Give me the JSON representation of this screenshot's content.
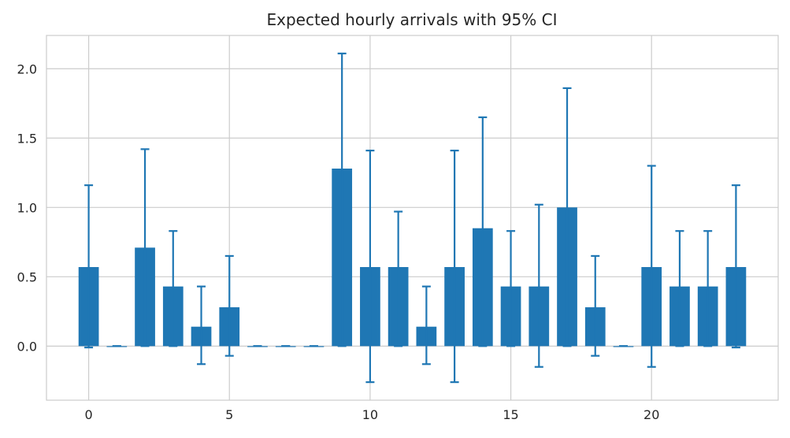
{
  "chart_data": {
    "type": "bar",
    "title": "Expected hourly arrivals with 95% CI",
    "xlabel": "",
    "ylabel": "",
    "categories": [
      0,
      1,
      2,
      3,
      4,
      5,
      6,
      7,
      8,
      9,
      10,
      11,
      12,
      13,
      14,
      15,
      16,
      17,
      18,
      19,
      20,
      21,
      22,
      23
    ],
    "values": [
      0.57,
      0.0,
      0.71,
      0.43,
      0.14,
      0.28,
      0.0,
      0.0,
      0.0,
      1.28,
      0.57,
      0.57,
      0.14,
      0.57,
      0.85,
      0.43,
      0.43,
      1.0,
      0.28,
      0.0,
      0.57,
      0.43,
      0.43,
      0.57
    ],
    "ci_lower": [
      -0.01,
      0.0,
      0.0,
      0.0,
      -0.13,
      -0.07,
      0.0,
      0.0,
      0.0,
      0.0,
      -0.26,
      0.0,
      -0.13,
      -0.26,
      0.0,
      0.0,
      -0.15,
      0.0,
      -0.07,
      0.0,
      -0.15,
      0.0,
      0.0,
      -0.01
    ],
    "ci_upper": [
      1.16,
      0.0,
      1.42,
      0.83,
      0.43,
      0.65,
      0.0,
      0.0,
      0.0,
      2.11,
      1.41,
      0.97,
      0.43,
      1.41,
      1.65,
      0.83,
      1.02,
      1.86,
      0.65,
      0.0,
      1.3,
      0.83,
      0.83,
      1.16
    ],
    "xticks": [
      0,
      5,
      10,
      15,
      20
    ],
    "yticks": [
      0.0,
      0.5,
      1.0,
      1.5,
      2.0
    ],
    "xlim": [
      -1.5,
      24.5
    ],
    "ylim": [
      -0.39,
      2.24
    ],
    "grid": true,
    "bar_color": "#1f77b4",
    "background": "#ffffff",
    "grid_color": "#cccccc"
  }
}
